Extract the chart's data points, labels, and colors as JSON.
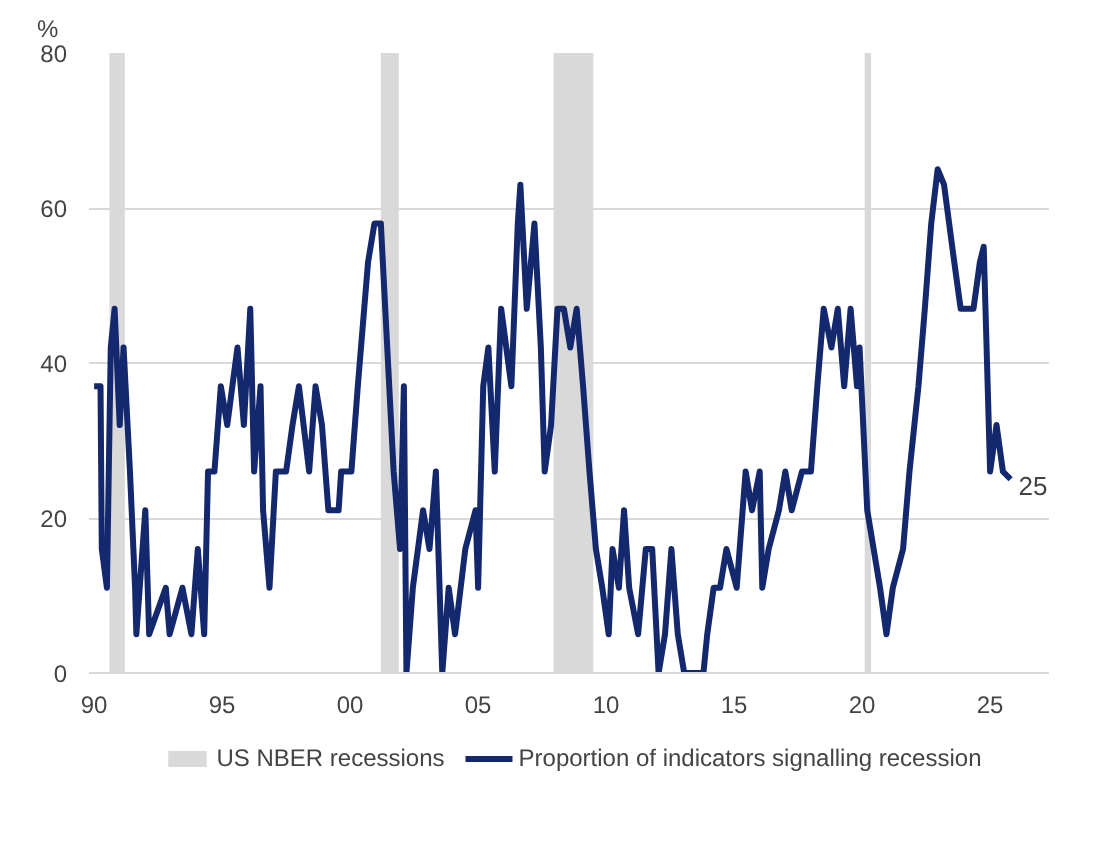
{
  "chart_data": {
    "type": "line",
    "ylabel": "%",
    "xlim": [
      1989.8,
      2027.3
    ],
    "ylim": [
      0,
      80
    ],
    "xticks": [
      {
        "value": 1990,
        "label": "90"
      },
      {
        "value": 1995,
        "label": "95"
      },
      {
        "value": 2000,
        "label": "00"
      },
      {
        "value": 2005,
        "label": "05"
      },
      {
        "value": 2010,
        "label": "10"
      },
      {
        "value": 2015,
        "label": "15"
      },
      {
        "value": 2020,
        "label": "20"
      },
      {
        "value": 2025,
        "label": "25"
      }
    ],
    "yticks": [
      0,
      20,
      40,
      60,
      80
    ],
    "grid": "y",
    "legend": "bottom",
    "line_style": "solid",
    "marker": "none",
    "bands": [
      {
        "axis": "x",
        "from": 1990.6,
        "to": 1991.2,
        "label": "US NBER recessions",
        "color": "#d9d9d9"
      },
      {
        "axis": "x",
        "from": 2001.2,
        "to": 2001.9,
        "color": "#d9d9d9"
      },
      {
        "axis": "x",
        "from": 2007.95,
        "to": 2009.5,
        "color": "#d9d9d9"
      },
      {
        "axis": "x",
        "from": 2020.1,
        "to": 2020.35,
        "color": "#d9d9d9"
      }
    ],
    "annotations": [
      {
        "text": "25",
        "x": 2025.8,
        "y": 25
      }
    ],
    "series": [
      {
        "name": "Proportion of indicators signalling recession",
        "color": "#14286e",
        "x": [
          1990.0,
          1990.25,
          1990.3,
          1990.5,
          1990.65,
          1990.8,
          1991.0,
          1991.15,
          1991.4,
          1991.6,
          1991.65,
          1992.0,
          1992.15,
          1992.8,
          1992.95,
          1993.45,
          1993.8,
          1994.05,
          1994.3,
          1994.45,
          1994.7,
          1994.95,
          1995.2,
          1995.6,
          1995.85,
          1996.1,
          1996.25,
          1996.5,
          1996.6,
          1996.85,
          1997.1,
          1997.5,
          1997.75,
          1998.0,
          1998.4,
          1998.65,
          1998.9,
          1999.15,
          1999.55,
          1999.65,
          2000.05,
          2000.3,
          2000.7,
          2000.95,
          2001.2,
          2001.45,
          2001.7,
          2001.95,
          2002.1,
          2002.2,
          2002.45,
          2002.85,
          2003.1,
          2003.35,
          2003.6,
          2003.85,
          2004.1,
          2004.5,
          2004.9,
          2005.0,
          2005.2,
          2005.4,
          2005.65,
          2005.9,
          2006.3,
          2006.55,
          2006.65,
          2006.9,
          2007.2,
          2007.45,
          2007.6,
          2007.85,
          2008.1,
          2008.35,
          2008.6,
          2008.85,
          2009.1,
          2009.35,
          2009.6,
          2009.85,
          2010.1,
          2010.25,
          2010.5,
          2010.7,
          2010.9,
          2011.25,
          2011.55,
          2011.8,
          2012.05,
          2012.3,
          2012.55,
          2012.8,
          2013.05,
          2013.8,
          2013.95,
          2014.2,
          2014.45,
          2014.7,
          2015.1,
          2015.45,
          2015.7,
          2016.0,
          2016.1,
          2016.35,
          2016.75,
          2017.0,
          2017.25,
          2017.65,
          2018.0,
          2018.25,
          2018.5,
          2018.8,
          2019.05,
          2019.3,
          2019.55,
          2019.8,
          2019.9,
          2020.2,
          2020.45,
          2020.7,
          2020.95,
          2021.2,
          2021.6,
          2021.85,
          2022.2,
          2022.45,
          2022.7,
          2022.95,
          2023.2,
          2023.6,
          2023.85,
          2024.1,
          2024.35,
          2024.6,
          2024.75,
          2025.0,
          2025.25,
          2025.5,
          2025.8
        ],
        "values": [
          37,
          37,
          16,
          11,
          42,
          47,
          32,
          42,
          26,
          11,
          5,
          21,
          5,
          11,
          5,
          11,
          5,
          16,
          5,
          26,
          26,
          37,
          32,
          42,
          32,
          47,
          26,
          37,
          21,
          11,
          26,
          26,
          32,
          37,
          26,
          37,
          32,
          21,
          21,
          26,
          26,
          37,
          53,
          58,
          58,
          42,
          26,
          16,
          37,
          0,
          11,
          21,
          16,
          26,
          0,
          11,
          5,
          16,
          21,
          11,
          37,
          42,
          26,
          47,
          37,
          58,
          63,
          47,
          58,
          42,
          26,
          32,
          47,
          47,
          42,
          47,
          37,
          26,
          16,
          11,
          5,
          16,
          11,
          21,
          11,
          5,
          16,
          16,
          0,
          5,
          16,
          5,
          0,
          0,
          5,
          11,
          11,
          16,
          11,
          26,
          21,
          26,
          11,
          16,
          21,
          26,
          21,
          26,
          26,
          37,
          47,
          42,
          47,
          37,
          47,
          37,
          42,
          21,
          16,
          11,
          5,
          11,
          16,
          26,
          37,
          47,
          58,
          65,
          63,
          53,
          47,
          47,
          47,
          53,
          55,
          26,
          32,
          26,
          25
        ]
      }
    ]
  }
}
